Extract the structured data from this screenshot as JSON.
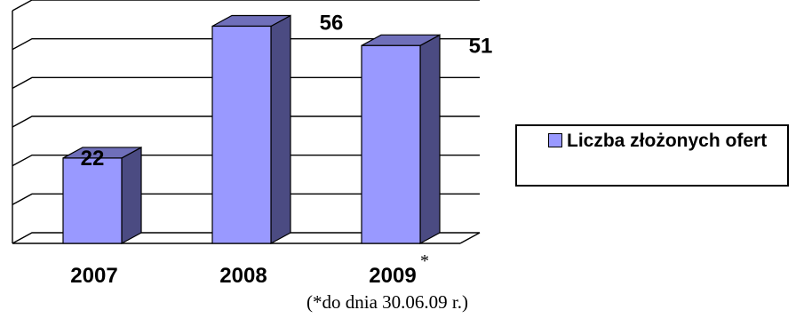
{
  "chart_data": {
    "type": "bar",
    "categories": [
      "2007",
      "2008",
      "2009"
    ],
    "category_suffixes": [
      "",
      "",
      "*"
    ],
    "series": [
      {
        "name": "Liczba złożonych ofert",
        "values": [
          22,
          56,
          51
        ],
        "color": "#9999ff"
      }
    ],
    "data_labels": [
      "22",
      "56",
      "51"
    ],
    "ylim": [
      0,
      60
    ],
    "gridlines": true,
    "three_d": true,
    "legend_position": "right",
    "footnote": "(*do dnia 30.06.09 r.)"
  },
  "colors": {
    "bar_front": "#9999ff",
    "bar_side": "#4b4b82",
    "bar_top": "#6f6fba"
  }
}
